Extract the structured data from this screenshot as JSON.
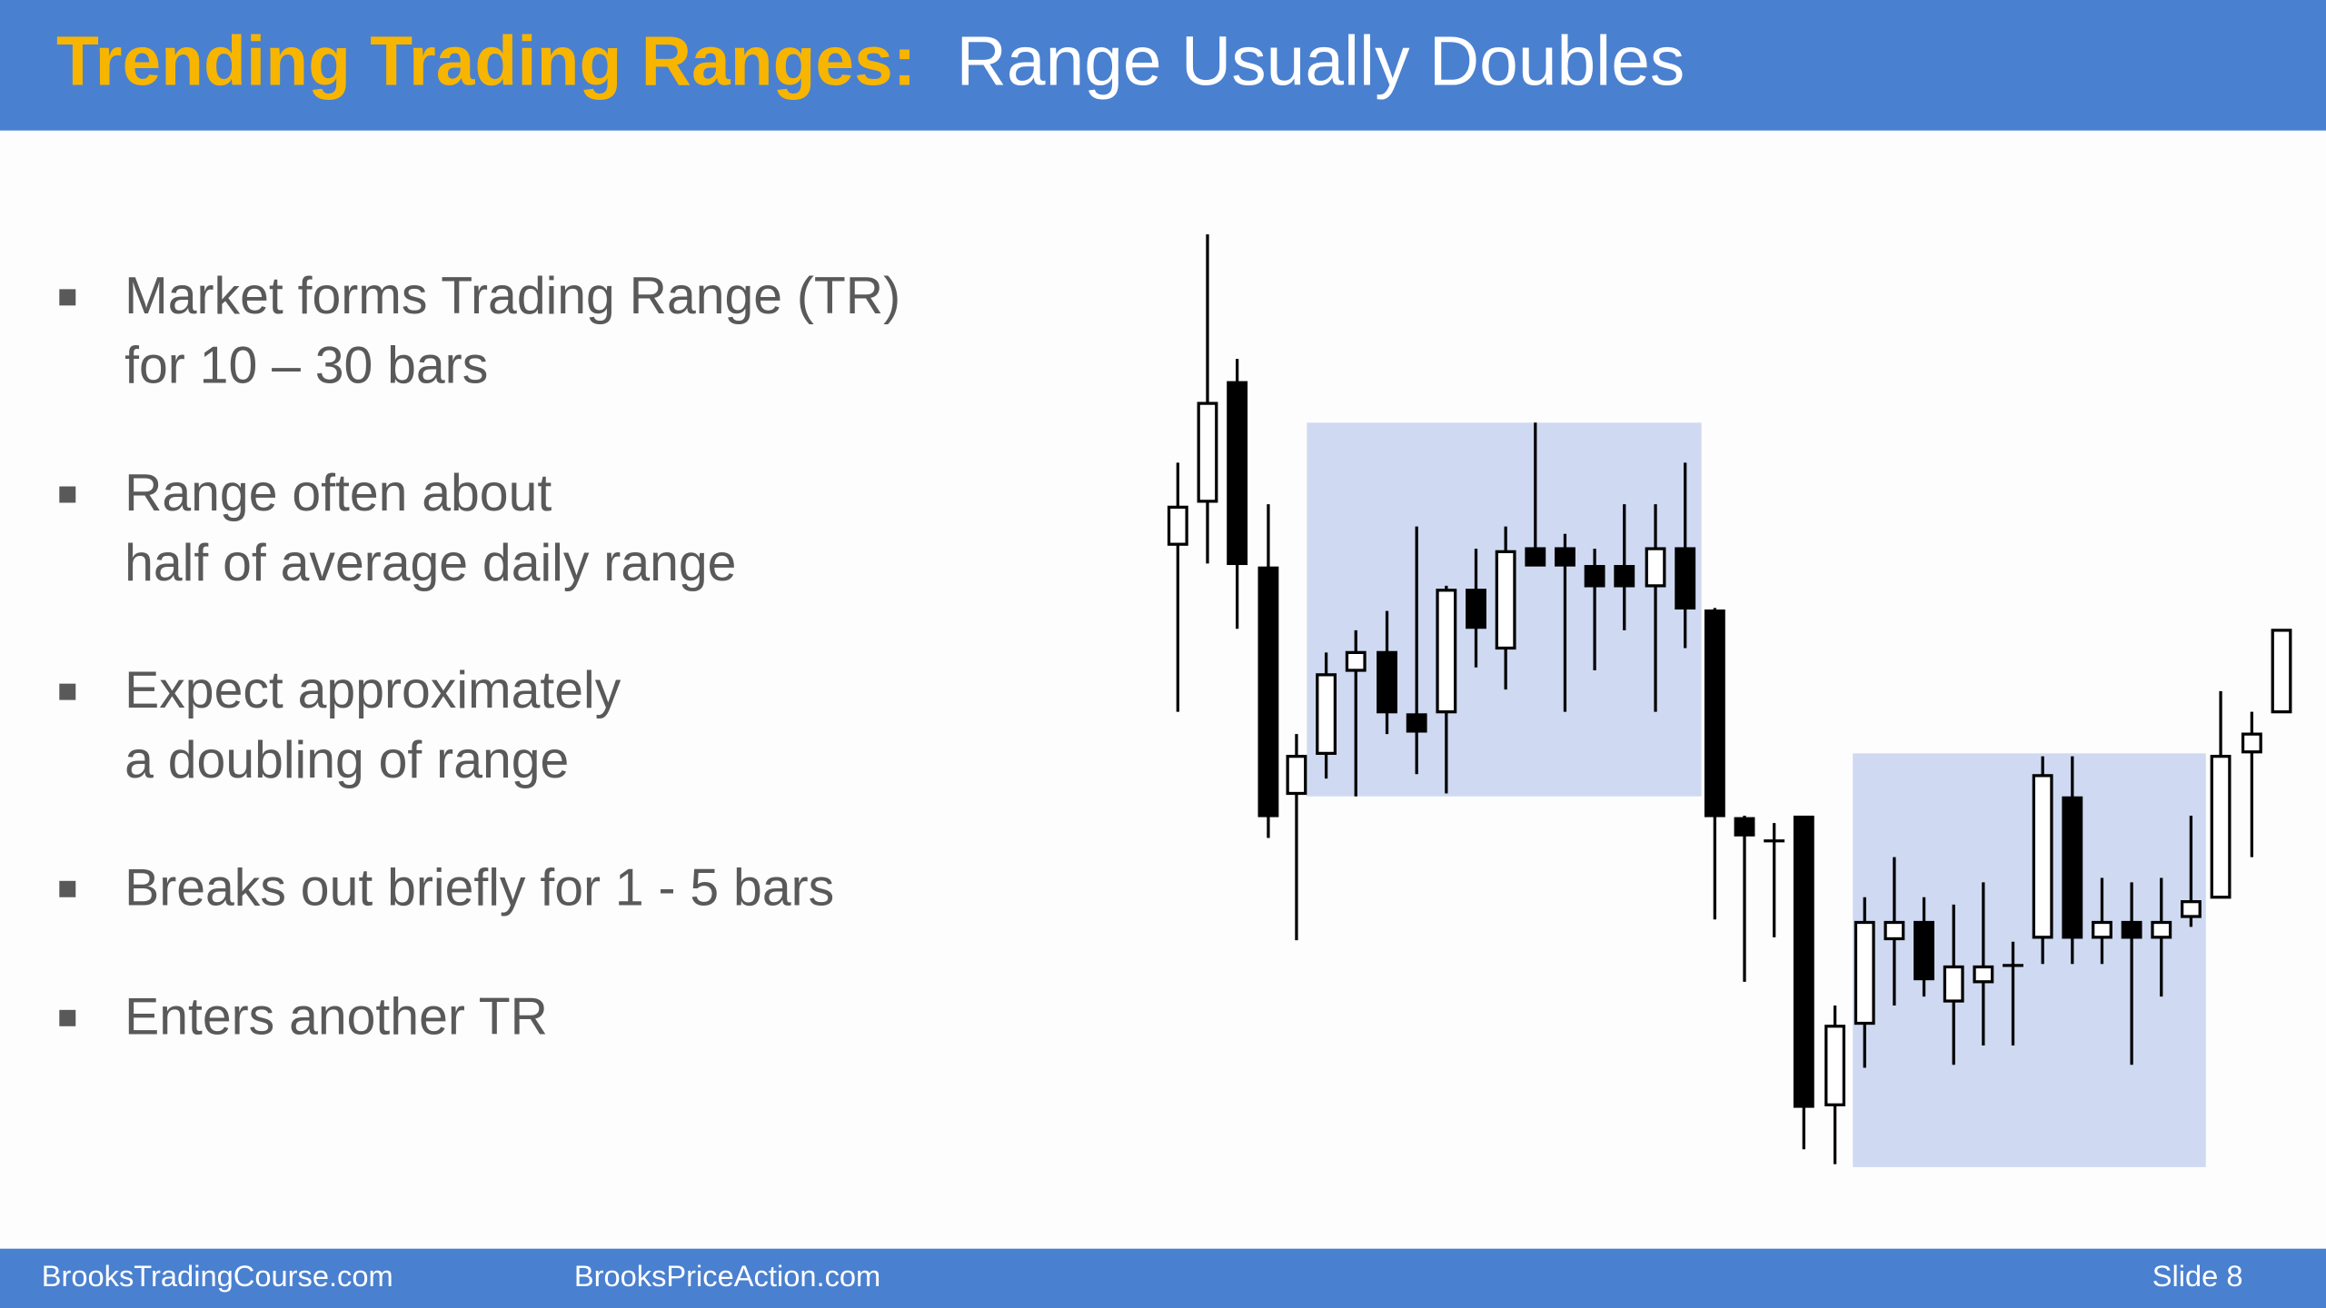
{
  "header": {
    "title": "Trending Trading Ranges:",
    "subtitle": "Range Usually Doubles"
  },
  "bullets": [
    [
      "Market forms Trading Range (TR)",
      "for 10 – 30 bars"
    ],
    [
      "Range often about",
      "half of average daily range"
    ],
    [
      "Expect approximately",
      "a doubling of range"
    ],
    [
      "Breaks out briefly for 1 - 5 bars"
    ],
    [
      "Enters another TR"
    ]
  ],
  "footer": {
    "left": "BrooksTradingCourse.com",
    "center": "BrooksPriceAction.com",
    "slide": "Slide 8"
  }
}
